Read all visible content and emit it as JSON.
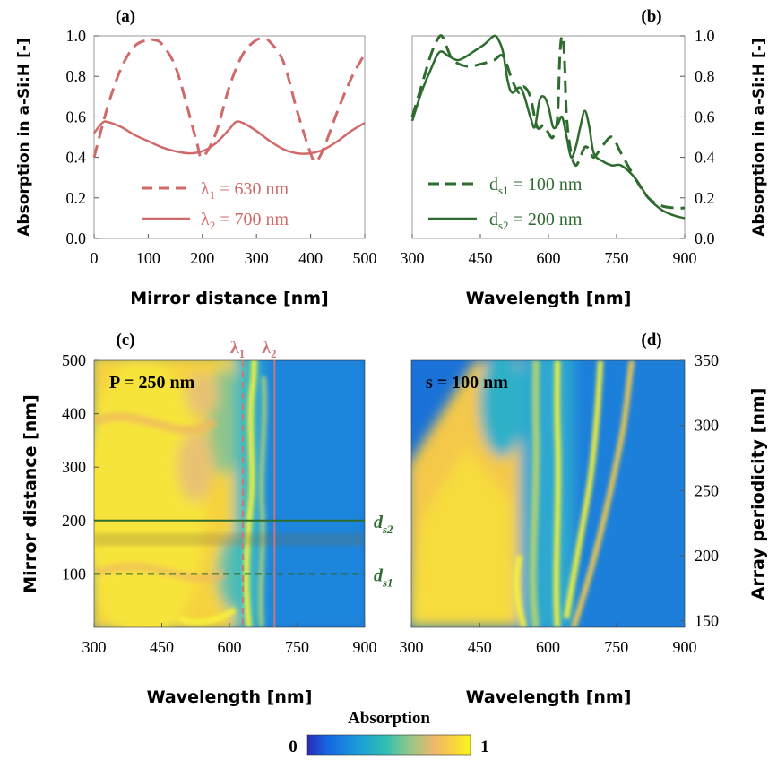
{
  "colorbar": {
    "title": "Absorption",
    "min_label": "0",
    "max_label": "1",
    "colormap": "parula"
  },
  "chart_data": [
    {
      "panel": "(a)",
      "type": "line",
      "xlabel": "Mirror distance [nm]",
      "ylabel": "Absorption  in  a-Si:H [-]",
      "xlim": [
        0,
        500
      ],
      "ylim": [
        0,
        1
      ],
      "xticks": [
        "0",
        "100",
        "200",
        "300",
        "400",
        "500"
      ],
      "yticks": [
        "0.0",
        "0.2",
        "0.4",
        "0.6",
        "0.8",
        "1.0"
      ],
      "grid": false,
      "legend": "bottom-center",
      "series": [
        {
          "name": "λ1 = 630 nm",
          "label_main": "λ",
          "label_sub": "1",
          "label_rest": " = 630 nm",
          "color": "#d06a6a",
          "dash": "dashed",
          "x": [
            0,
            25,
            50,
            75,
            100,
            110,
            125,
            150,
            175,
            190,
            200,
            225,
            250,
            275,
            300,
            315,
            325,
            350,
            375,
            400,
            410,
            425,
            450,
            475,
            500
          ],
          "y": [
            0.4,
            0.65,
            0.84,
            0.95,
            0.98,
            0.98,
            0.96,
            0.85,
            0.62,
            0.47,
            0.4,
            0.52,
            0.75,
            0.91,
            0.98,
            0.98,
            0.97,
            0.87,
            0.63,
            0.42,
            0.38,
            0.45,
            0.63,
            0.79,
            0.91
          ]
        },
        {
          "name": "λ2 = 700 nm",
          "label_main": "λ",
          "label_sub": "2",
          "label_rest": " = 700 nm",
          "color": "#d06a6a",
          "dash": "solid",
          "x": [
            0,
            15,
            25,
            50,
            75,
            100,
            125,
            150,
            175,
            200,
            225,
            250,
            262,
            275,
            300,
            325,
            350,
            375,
            400,
            425,
            450,
            475,
            500
          ],
          "y": [
            0.52,
            0.57,
            0.575,
            0.55,
            0.51,
            0.48,
            0.45,
            0.43,
            0.42,
            0.43,
            0.47,
            0.54,
            0.575,
            0.57,
            0.53,
            0.48,
            0.44,
            0.42,
            0.42,
            0.44,
            0.48,
            0.53,
            0.57
          ]
        }
      ]
    },
    {
      "panel": "(b)",
      "type": "line",
      "xlabel": "Wavelength [nm]",
      "ylabel": "Absorption  in  a-Si:H [-]",
      "xlim": [
        300,
        900
      ],
      "ylim": [
        0,
        1
      ],
      "xticks": [
        "300",
        "450",
        "600",
        "750",
        "900"
      ],
      "yticks": [
        "0.0",
        "0.2",
        "0.4",
        "0.6",
        "0.8",
        "1.0"
      ],
      "grid": false,
      "legend": "bottom-center",
      "series": [
        {
          "name": "ds1 = 100 nm",
          "label_main": "d",
          "label_sub": "s1",
          "label_rest": " = 100 nm",
          "color": "#2e6b2e",
          "dash": "dashed",
          "x": [
            300,
            320,
            340,
            355,
            365,
            375,
            390,
            420,
            450,
            480,
            500,
            520,
            535,
            545,
            560,
            575,
            590,
            600,
            610,
            620,
            625,
            630,
            635,
            640,
            650,
            660,
            670,
            680,
            690,
            700,
            720,
            740,
            760,
            790,
            820,
            850,
            880,
            900
          ],
          "y": [
            0.6,
            0.75,
            0.9,
            0.98,
            1.0,
            0.95,
            0.88,
            0.85,
            0.86,
            0.88,
            0.9,
            0.78,
            0.72,
            0.75,
            0.7,
            0.55,
            0.56,
            0.52,
            0.5,
            0.6,
            0.9,
            1.0,
            0.9,
            0.6,
            0.42,
            0.36,
            0.4,
            0.45,
            0.44,
            0.4,
            0.46,
            0.5,
            0.42,
            0.3,
            0.2,
            0.16,
            0.15,
            0.15
          ]
        },
        {
          "name": "ds2 = 200 nm",
          "label_main": "d",
          "label_sub": "s2",
          "label_rest": " = 200 nm",
          "color": "#2e6b2e",
          "dash": "solid",
          "x": [
            300,
            320,
            340,
            360,
            380,
            400,
            420,
            440,
            460,
            480,
            490,
            500,
            510,
            520,
            540,
            560,
            570,
            580,
            590,
            600,
            610,
            620,
            630,
            640,
            650,
            660,
            670,
            680,
            690,
            700,
            720,
            740,
            760,
            790,
            820,
            850,
            880,
            900
          ],
          "y": [
            0.58,
            0.72,
            0.83,
            0.92,
            0.9,
            0.88,
            0.9,
            0.93,
            0.96,
            1.0,
            0.98,
            0.92,
            0.78,
            0.72,
            0.74,
            0.6,
            0.55,
            0.68,
            0.7,
            0.65,
            0.55,
            0.56,
            0.6,
            0.5,
            0.4,
            0.45,
            0.55,
            0.63,
            0.55,
            0.42,
            0.38,
            0.36,
            0.36,
            0.3,
            0.2,
            0.14,
            0.11,
            0.1
          ]
        }
      ]
    },
    {
      "panel": "(c)",
      "type": "heatmap",
      "annotation": "P = 250 nm",
      "xlabel": "Wavelength [nm]",
      "ylabel": "Mirror distance [nm]",
      "xlim": [
        300,
        900
      ],
      "ylim": [
        0,
        500
      ],
      "xticks": [
        "300",
        "450",
        "600",
        "750",
        "900"
      ],
      "yticks": [
        "100",
        "200",
        "300",
        "400",
        "500"
      ],
      "value_range": [
        0,
        1
      ],
      "markers": [
        {
          "orientation": "vertical",
          "value": 630,
          "label_main": "λ",
          "label_sub": "1",
          "style": "dashed",
          "color": "#c87878"
        },
        {
          "orientation": "vertical",
          "value": 700,
          "label_main": "λ",
          "label_sub": "2",
          "style": "solid",
          "color": "#c87878"
        },
        {
          "orientation": "horizontal",
          "value": 200,
          "label_main": "d",
          "label_sub": "s2",
          "style": "solid",
          "color": "#2e6b2e"
        },
        {
          "orientation": "horizontal",
          "value": 100,
          "label_main": "d",
          "label_sub": "s1",
          "style": "dashed",
          "color": "#2e6b2e"
        }
      ]
    },
    {
      "panel": "(d)",
      "type": "heatmap",
      "annotation": "s = 100 nm",
      "xlabel": "Wavelength [nm]",
      "ylabel": "Array periodicity [nm]",
      "xlim": [
        300,
        900
      ],
      "ylim": [
        145,
        350
      ],
      "xticks": [
        "300",
        "450",
        "600",
        "750",
        "900"
      ],
      "yticks": [
        "150",
        "200",
        "250",
        "300",
        "350"
      ],
      "value_range": [
        0,
        1
      ]
    }
  ]
}
